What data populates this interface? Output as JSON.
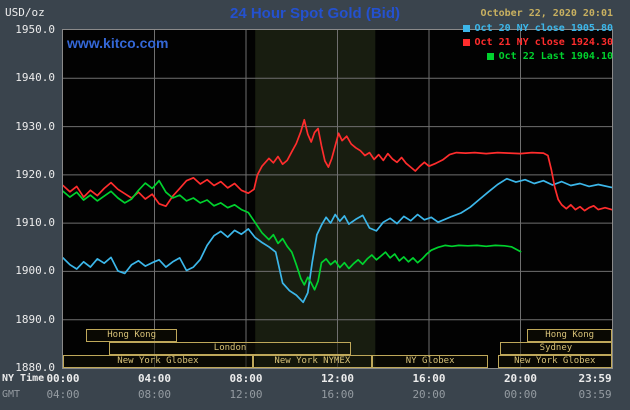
{
  "header": {
    "units_label": "USD/oz",
    "title": "24 Hour Spot Gold (Bid)",
    "datetime": "October 22, 2020 20:01",
    "watermark": "www.kitco.com"
  },
  "legend": [
    {
      "label": "Oct 20 NY close 1905.80",
      "color": "#3cb7ea"
    },
    {
      "label": "Oct 21 NY close 1924.30",
      "color": "#ff2d2d"
    },
    {
      "label": "Oct 22 Last 1904.10",
      "color": "#00d22e"
    }
  ],
  "axes": {
    "ny_time_label": "NY Time",
    "gmt_label": "GMT"
  },
  "colors": {
    "background": "#3a444d",
    "plot_background": "#020202",
    "session_band": "#181d10",
    "grid": "#6f6f6f",
    "frame": "#8a8a8a",
    "tan": "#c8b060",
    "title_blue": "#2451cf",
    "watermark_blue": "#3467d6"
  },
  "sessions": [
    {
      "label": "Hong Kong",
      "row": 0,
      "start": 1.0,
      "end": 5.0
    },
    {
      "label": "Hong Kong",
      "row": 0,
      "start": 20.3,
      "end": 24
    },
    {
      "label": "London",
      "row": 1,
      "start": 2.0,
      "end": 12.6
    },
    {
      "label": "Sydney",
      "row": 1,
      "start": 19.1,
      "end": 24
    },
    {
      "label": "New York Globex",
      "row": 2,
      "start": 0,
      "end": 8.3
    },
    {
      "label": "New York NYMEX",
      "row": 2,
      "start": 8.3,
      "end": 13.5
    },
    {
      "label": "NY Globex",
      "row": 2,
      "start": 13.5,
      "end": 18.6
    },
    {
      "label": "New York Globex",
      "row": 2,
      "start": 19.0,
      "end": 24
    }
  ],
  "chart_data": {
    "type": "line",
    "title": "24 Hour Spot Gold (Bid)",
    "ylabel": "USD/oz",
    "y_axis": {
      "min": 1880,
      "max": 1950,
      "tick_step": 10,
      "tick_labels": [
        "1950.0",
        "1940.0",
        "1930.0",
        "1920.0",
        "1910.0",
        "1900.0",
        "1890.0",
        "1880.0"
      ]
    },
    "x_axis": {
      "tick_hours": [
        0,
        4,
        8,
        12,
        16,
        20,
        23.983
      ],
      "ny_labels": [
        "00:00",
        "04:00",
        "08:00",
        "12:00",
        "16:00",
        "20:00",
        "23:59"
      ],
      "gmt_labels": [
        "04:00",
        "08:00",
        "12:00",
        "16:00",
        "20:00",
        "00:00",
        "03:59"
      ],
      "grid_hours": [
        4,
        8,
        12,
        16,
        20
      ]
    },
    "shaded_band_hours": [
      8.4,
      13.65
    ],
    "series": [
      {
        "id": "oct20",
        "name": "Oct 20 NY close 1905.80",
        "color": "#3cb7ea",
        "points": [
          [
            0,
            1902.8
          ],
          [
            0.3,
            1901.4
          ],
          [
            0.6,
            1900.5
          ],
          [
            0.9,
            1902.0
          ],
          [
            1.2,
            1900.9
          ],
          [
            1.5,
            1902.6
          ],
          [
            1.8,
            1901.7
          ],
          [
            2.1,
            1902.9
          ],
          [
            2.4,
            1900.1
          ],
          [
            2.7,
            1899.6
          ],
          [
            3.0,
            1901.4
          ],
          [
            3.3,
            1902.2
          ],
          [
            3.6,
            1901.1
          ],
          [
            3.9,
            1901.8
          ],
          [
            4.2,
            1902.4
          ],
          [
            4.5,
            1900.9
          ],
          [
            4.8,
            1902.0
          ],
          [
            5.1,
            1902.8
          ],
          [
            5.4,
            1900.2
          ],
          [
            5.7,
            1900.9
          ],
          [
            6.0,
            1902.5
          ],
          [
            6.3,
            1905.4
          ],
          [
            6.6,
            1907.4
          ],
          [
            6.9,
            1908.3
          ],
          [
            7.2,
            1907.1
          ],
          [
            7.5,
            1908.5
          ],
          [
            7.8,
            1907.7
          ],
          [
            8.1,
            1908.8
          ],
          [
            8.4,
            1907.0
          ],
          [
            8.7,
            1906.0
          ],
          [
            9.0,
            1905.1
          ],
          [
            9.3,
            1904.0
          ],
          [
            9.6,
            1897.6
          ],
          [
            9.9,
            1896.0
          ],
          [
            10.2,
            1895.1
          ],
          [
            10.5,
            1893.6
          ],
          [
            10.7,
            1895.6
          ],
          [
            10.9,
            1902.0
          ],
          [
            11.1,
            1907.6
          ],
          [
            11.3,
            1909.6
          ],
          [
            11.5,
            1911.2
          ],
          [
            11.7,
            1910.0
          ],
          [
            11.9,
            1911.8
          ],
          [
            12.1,
            1910.4
          ],
          [
            12.3,
            1911.5
          ],
          [
            12.5,
            1909.8
          ],
          [
            12.8,
            1910.8
          ],
          [
            13.1,
            1911.6
          ],
          [
            13.4,
            1909.0
          ],
          [
            13.7,
            1908.4
          ],
          [
            14.0,
            1910.2
          ],
          [
            14.3,
            1911.0
          ],
          [
            14.6,
            1909.9
          ],
          [
            14.9,
            1911.4
          ],
          [
            15.2,
            1910.5
          ],
          [
            15.5,
            1911.8
          ],
          [
            15.8,
            1910.7
          ],
          [
            16.1,
            1911.2
          ],
          [
            16.4,
            1910.2
          ],
          [
            16.7,
            1910.8
          ],
          [
            17.0,
            1911.4
          ],
          [
            17.4,
            1912.1
          ],
          [
            17.8,
            1913.3
          ],
          [
            18.2,
            1914.9
          ],
          [
            18.6,
            1916.5
          ],
          [
            19.0,
            1918.0
          ],
          [
            19.4,
            1919.2
          ],
          [
            19.8,
            1918.5
          ],
          [
            20.2,
            1919.0
          ],
          [
            20.6,
            1918.2
          ],
          [
            21.0,
            1918.8
          ],
          [
            21.4,
            1917.9
          ],
          [
            21.8,
            1918.6
          ],
          [
            22.2,
            1917.8
          ],
          [
            22.6,
            1918.2
          ],
          [
            23.0,
            1917.6
          ],
          [
            23.4,
            1918.0
          ],
          [
            23.983,
            1917.4
          ]
        ]
      },
      {
        "id": "oct21",
        "name": "Oct 21 NY close 1924.30",
        "color": "#ff2d2d",
        "points": [
          [
            0,
            1917.8
          ],
          [
            0.3,
            1916.5
          ],
          [
            0.6,
            1917.6
          ],
          [
            0.9,
            1915.4
          ],
          [
            1.2,
            1916.8
          ],
          [
            1.5,
            1915.7
          ],
          [
            1.8,
            1917.2
          ],
          [
            2.1,
            1918.4
          ],
          [
            2.4,
            1917.0
          ],
          [
            2.7,
            1916.1
          ],
          [
            3.0,
            1915.2
          ],
          [
            3.3,
            1916.4
          ],
          [
            3.6,
            1915.0
          ],
          [
            3.9,
            1916.0
          ],
          [
            4.2,
            1914.0
          ],
          [
            4.5,
            1913.5
          ],
          [
            4.8,
            1915.6
          ],
          [
            5.1,
            1917.2
          ],
          [
            5.4,
            1918.8
          ],
          [
            5.7,
            1919.4
          ],
          [
            6.0,
            1918.1
          ],
          [
            6.3,
            1919.0
          ],
          [
            6.6,
            1917.8
          ],
          [
            6.9,
            1918.6
          ],
          [
            7.2,
            1917.3
          ],
          [
            7.5,
            1918.2
          ],
          [
            7.8,
            1916.8
          ],
          [
            8.1,
            1916.2
          ],
          [
            8.35,
            1917.0
          ],
          [
            8.5,
            1920.0
          ],
          [
            8.7,
            1921.8
          ],
          [
            9.0,
            1923.4
          ],
          [
            9.2,
            1922.5
          ],
          [
            9.4,
            1923.8
          ],
          [
            9.6,
            1922.2
          ],
          [
            9.8,
            1923.0
          ],
          [
            10.0,
            1924.8
          ],
          [
            10.2,
            1926.5
          ],
          [
            10.4,
            1929.0
          ],
          [
            10.55,
            1931.4
          ],
          [
            10.7,
            1928.4
          ],
          [
            10.85,
            1926.8
          ],
          [
            11.0,
            1928.8
          ],
          [
            11.15,
            1929.6
          ],
          [
            11.3,
            1926.0
          ],
          [
            11.45,
            1922.9
          ],
          [
            11.6,
            1921.6
          ],
          [
            11.75,
            1923.4
          ],
          [
            11.9,
            1926.0
          ],
          [
            12.05,
            1928.6
          ],
          [
            12.2,
            1927.1
          ],
          [
            12.4,
            1928.0
          ],
          [
            12.6,
            1926.4
          ],
          [
            12.8,
            1925.6
          ],
          [
            13.0,
            1925.0
          ],
          [
            13.2,
            1924.0
          ],
          [
            13.4,
            1924.6
          ],
          [
            13.6,
            1923.2
          ],
          [
            13.8,
            1924.2
          ],
          [
            14.0,
            1923.0
          ],
          [
            14.2,
            1924.4
          ],
          [
            14.4,
            1923.3
          ],
          [
            14.6,
            1922.6
          ],
          [
            14.8,
            1923.6
          ],
          [
            15.0,
            1922.4
          ],
          [
            15.2,
            1921.6
          ],
          [
            15.4,
            1920.8
          ],
          [
            15.6,
            1921.8
          ],
          [
            15.8,
            1922.6
          ],
          [
            16.0,
            1921.8
          ],
          [
            16.3,
            1922.4
          ],
          [
            16.6,
            1923.1
          ],
          [
            16.9,
            1924.2
          ],
          [
            17.2,
            1924.6
          ],
          [
            17.6,
            1924.5
          ],
          [
            18.0,
            1924.6
          ],
          [
            18.5,
            1924.4
          ],
          [
            19.0,
            1924.6
          ],
          [
            19.5,
            1924.5
          ],
          [
            20.0,
            1924.4
          ],
          [
            20.5,
            1924.6
          ],
          [
            21.0,
            1924.5
          ],
          [
            21.2,
            1924.0
          ],
          [
            21.35,
            1921.0
          ],
          [
            21.5,
            1917.4
          ],
          [
            21.65,
            1914.9
          ],
          [
            21.8,
            1913.8
          ],
          [
            22.0,
            1913.0
          ],
          [
            22.2,
            1913.8
          ],
          [
            22.4,
            1912.8
          ],
          [
            22.6,
            1913.4
          ],
          [
            22.8,
            1912.6
          ],
          [
            23.0,
            1913.2
          ],
          [
            23.2,
            1913.6
          ],
          [
            23.4,
            1912.8
          ],
          [
            23.7,
            1913.2
          ],
          [
            23.983,
            1912.8
          ]
        ]
      },
      {
        "id": "oct22",
        "name": "Oct 22 Last 1904.10",
        "color": "#00d22e",
        "points": [
          [
            0,
            1916.6
          ],
          [
            0.3,
            1915.4
          ],
          [
            0.6,
            1916.4
          ],
          [
            0.9,
            1914.8
          ],
          [
            1.2,
            1915.8
          ],
          [
            1.5,
            1914.6
          ],
          [
            1.8,
            1915.6
          ],
          [
            2.1,
            1916.6
          ],
          [
            2.4,
            1915.2
          ],
          [
            2.7,
            1914.2
          ],
          [
            3.0,
            1915.0
          ],
          [
            3.3,
            1916.8
          ],
          [
            3.6,
            1918.3
          ],
          [
            3.9,
            1917.2
          ],
          [
            4.2,
            1918.8
          ],
          [
            4.5,
            1916.4
          ],
          [
            4.8,
            1915.2
          ],
          [
            5.1,
            1915.8
          ],
          [
            5.4,
            1914.6
          ],
          [
            5.7,
            1915.2
          ],
          [
            6.0,
            1914.2
          ],
          [
            6.3,
            1914.8
          ],
          [
            6.6,
            1913.6
          ],
          [
            6.9,
            1914.2
          ],
          [
            7.2,
            1913.2
          ],
          [
            7.5,
            1913.8
          ],
          [
            7.8,
            1912.8
          ],
          [
            8.1,
            1912.2
          ],
          [
            8.4,
            1910.1
          ],
          [
            8.7,
            1908.0
          ],
          [
            9.0,
            1906.6
          ],
          [
            9.2,
            1907.6
          ],
          [
            9.4,
            1905.8
          ],
          [
            9.6,
            1906.8
          ],
          [
            9.8,
            1905.2
          ],
          [
            10.0,
            1904.0
          ],
          [
            10.2,
            1901.4
          ],
          [
            10.4,
            1898.5
          ],
          [
            10.55,
            1897.2
          ],
          [
            10.7,
            1898.8
          ],
          [
            10.85,
            1897.6
          ],
          [
            11.0,
            1896.2
          ],
          [
            11.15,
            1898.0
          ],
          [
            11.3,
            1901.8
          ],
          [
            11.5,
            1902.6
          ],
          [
            11.7,
            1901.4
          ],
          [
            11.9,
            1902.2
          ],
          [
            12.1,
            1900.8
          ],
          [
            12.3,
            1901.8
          ],
          [
            12.5,
            1900.6
          ],
          [
            12.7,
            1901.6
          ],
          [
            12.9,
            1902.4
          ],
          [
            13.1,
            1901.5
          ],
          [
            13.3,
            1902.6
          ],
          [
            13.5,
            1903.4
          ],
          [
            13.7,
            1902.4
          ],
          [
            13.9,
            1903.2
          ],
          [
            14.1,
            1904.0
          ],
          [
            14.3,
            1902.8
          ],
          [
            14.5,
            1903.6
          ],
          [
            14.7,
            1902.2
          ],
          [
            14.9,
            1903.0
          ],
          [
            15.1,
            1902.0
          ],
          [
            15.3,
            1902.8
          ],
          [
            15.5,
            1901.8
          ],
          [
            15.7,
            1902.6
          ],
          [
            15.9,
            1903.6
          ],
          [
            16.1,
            1904.4
          ],
          [
            16.4,
            1905.0
          ],
          [
            16.7,
            1905.4
          ],
          [
            17.0,
            1905.2
          ],
          [
            17.3,
            1905.4
          ],
          [
            17.7,
            1905.3
          ],
          [
            18.1,
            1905.4
          ],
          [
            18.5,
            1905.2
          ],
          [
            18.9,
            1905.4
          ],
          [
            19.3,
            1905.3
          ],
          [
            19.6,
            1905.1
          ],
          [
            20.0,
            1904.1
          ]
        ]
      }
    ]
  }
}
